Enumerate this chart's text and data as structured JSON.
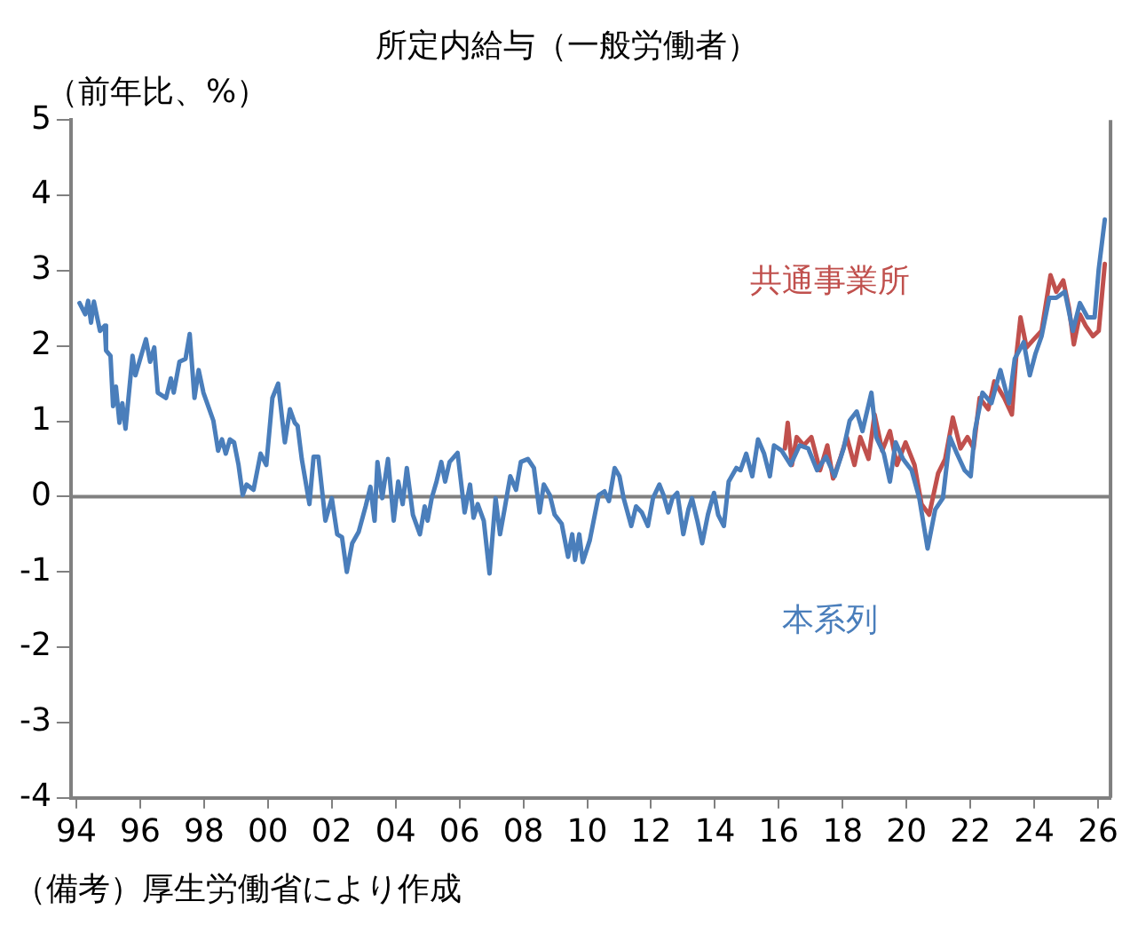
{
  "chart_data": {
    "type": "line",
    "title": "所定内給与（一般労働者）",
    "ylabel": "（前年比、%）",
    "annotations": [
      "（備考）厚生労働省により作成"
    ],
    "xlim": [
      1993.83,
      2026.39
    ],
    "ylim": [
      -4,
      5
    ],
    "yticks": [
      -4,
      -3,
      -2,
      -1,
      0,
      1,
      2,
      3,
      4,
      5
    ],
    "xticks": [
      {
        "value": 1994,
        "label": "94"
      },
      {
        "value": 1996,
        "label": "96"
      },
      {
        "value": 1998,
        "label": "98"
      },
      {
        "value": 2000,
        "label": "00"
      },
      {
        "value": 2002,
        "label": "02"
      },
      {
        "value": 2004,
        "label": "04"
      },
      {
        "value": 2006,
        "label": "06"
      },
      {
        "value": 2008,
        "label": "08"
      },
      {
        "value": 2010,
        "label": "10"
      },
      {
        "value": 2012,
        "label": "12"
      },
      {
        "value": 2014,
        "label": "14"
      },
      {
        "value": 2016,
        "label": "16"
      },
      {
        "value": 2018,
        "label": "18"
      },
      {
        "value": 2020,
        "label": "20"
      },
      {
        "value": 2022,
        "label": "22"
      },
      {
        "value": 2024,
        "label": "24"
      },
      {
        "value": 2026,
        "label": "26"
      }
    ],
    "grid": false,
    "legend": false,
    "marker": "none",
    "line_style": "solid",
    "ref_lines": [
      {
        "axis": "y",
        "value": 0,
        "color": "#808080"
      }
    ],
    "series": [
      {
        "name": "本系列",
        "color": "#4a7ebb",
        "x": [
          1994.1,
          1994.28,
          1994.37,
          1994.46,
          1994.55,
          1994.74,
          1994.89,
          1994.93,
          1995.07,
          1995.15,
          1995.24,
          1995.35,
          1995.44,
          1995.54,
          1995.76,
          1995.85,
          1996.18,
          1996.31,
          1996.44,
          1996.55,
          1996.81,
          1996.96,
          1997.05,
          1997.23,
          1997.42,
          1997.55,
          1997.7,
          1997.83,
          1997.98,
          1998.29,
          1998.44,
          1998.56,
          1998.68,
          1998.81,
          1998.94,
          1999.08,
          1999.21,
          1999.33,
          1999.55,
          1999.77,
          1999.95,
          2000.14,
          2000.32,
          2000.53,
          2000.69,
          2000.84,
          2000.93,
          2001.06,
          2001.3,
          2001.43,
          2001.58,
          2001.8,
          2002.0,
          2002.17,
          2002.32,
          2002.47,
          2002.64,
          2002.84,
          2003.06,
          2003.21,
          2003.34,
          2003.43,
          2003.58,
          2003.76,
          2003.94,
          2004.08,
          2004.22,
          2004.35,
          2004.54,
          2004.76,
          2004.91,
          2005.0,
          2005.13,
          2005.28,
          2005.43,
          2005.55,
          2005.69,
          2005.94,
          2006.16,
          2006.33,
          2006.44,
          2006.57,
          2006.76,
          2006.94,
          2007.13,
          2007.27,
          2007.41,
          2007.59,
          2007.77,
          2007.92,
          2008.14,
          2008.33,
          2008.51,
          2008.64,
          2008.83,
          2008.98,
          2009.2,
          2009.4,
          2009.53,
          2009.62,
          2009.75,
          2009.86,
          2010.08,
          2010.36,
          2010.54,
          2010.68,
          2010.86,
          2011.01,
          2011.14,
          2011.38,
          2011.53,
          2011.71,
          2011.9,
          2012.06,
          2012.26,
          2012.39,
          2012.54,
          2012.67,
          2012.82,
          2013.01,
          2013.17,
          2013.28,
          2013.45,
          2013.6,
          2013.78,
          2013.97,
          2014.1,
          2014.28,
          2014.43,
          2014.67,
          2014.8,
          2014.98,
          2015.17,
          2015.35,
          2015.54,
          2015.72,
          2015.85,
          2016.09,
          2016.37,
          2016.65,
          2016.92,
          2017.2,
          2017.48,
          2017.75,
          2018.03,
          2018.22,
          2018.44,
          2018.62,
          2018.9,
          2019.05,
          2019.29,
          2019.48,
          2019.66,
          2019.89,
          2020.16,
          2020.4,
          2020.66,
          2020.9,
          2021.14,
          2021.36,
          2021.58,
          2021.82,
          2022.01,
          2022.14,
          2022.38,
          2022.66,
          2022.94,
          2023.21,
          2023.39,
          2023.67,
          2023.86,
          2024.04,
          2024.23,
          2024.47,
          2024.69,
          2024.96,
          2025.21,
          2025.43,
          2025.67,
          2025.89,
          2026.02,
          2026.21
        ],
        "values": [
          2.57,
          2.42,
          2.6,
          2.31,
          2.59,
          2.2,
          2.27,
          1.94,
          1.87,
          1.2,
          1.46,
          0.98,
          1.24,
          0.9,
          1.87,
          1.61,
          2.09,
          1.79,
          1.98,
          1.38,
          1.31,
          1.57,
          1.38,
          1.79,
          1.83,
          2.16,
          1.31,
          1.68,
          1.38,
          1.01,
          0.61,
          0.76,
          0.57,
          0.76,
          0.72,
          0.42,
          0.02,
          0.16,
          0.09,
          0.57,
          0.42,
          1.31,
          1.5,
          0.72,
          1.16,
          0.98,
          0.94,
          0.5,
          -0.1,
          0.53,
          0.53,
          -0.32,
          -0.02,
          -0.5,
          -0.54,
          -1.0,
          -0.62,
          -0.47,
          -0.13,
          0.13,
          -0.32,
          0.46,
          -0.02,
          0.5,
          -0.32,
          0.2,
          -0.1,
          0.38,
          -0.24,
          -0.5,
          -0.13,
          -0.32,
          -0.02,
          0.2,
          0.46,
          0.2,
          0.46,
          0.58,
          -0.21,
          0.16,
          -0.28,
          -0.1,
          -0.32,
          -1.02,
          -0.02,
          -0.5,
          -0.17,
          0.27,
          0.09,
          0.46,
          0.5,
          0.38,
          -0.21,
          0.16,
          0.02,
          -0.24,
          -0.36,
          -0.8,
          -0.5,
          -0.84,
          -0.5,
          -0.87,
          -0.58,
          0.02,
          0.07,
          -0.06,
          0.38,
          0.27,
          -0.02,
          -0.39,
          -0.13,
          -0.21,
          -0.39,
          -0.02,
          0.16,
          0.02,
          -0.21,
          -0.02,
          0.05,
          -0.5,
          -0.17,
          -0.02,
          -0.32,
          -0.62,
          -0.24,
          0.05,
          -0.24,
          -0.39,
          0.2,
          0.38,
          0.35,
          0.57,
          0.27,
          0.76,
          0.57,
          0.27,
          0.68,
          0.61,
          0.42,
          0.68,
          0.64,
          0.35,
          0.53,
          0.27,
          0.64,
          1.01,
          1.13,
          0.87,
          1.38,
          0.79,
          0.57,
          0.2,
          0.72,
          0.5,
          0.35,
          -0.02,
          -0.69,
          -0.17,
          -0.02,
          0.79,
          0.57,
          0.35,
          0.27,
          0.87,
          1.38,
          1.24,
          1.68,
          1.24,
          1.83,
          2.05,
          1.61,
          1.9,
          2.13,
          2.64,
          2.64,
          2.72,
          2.2,
          2.57,
          2.38,
          2.38,
          3.02,
          3.68
        ]
      },
      {
        "name": "共通事業所",
        "color": "#c0504d",
        "x": [
          2016.19,
          2016.28,
          2016.41,
          2016.56,
          2016.78,
          2017.02,
          2017.29,
          2017.52,
          2017.7,
          2017.94,
          2018.13,
          2018.37,
          2018.55,
          2018.81,
          2019.0,
          2019.24,
          2019.48,
          2019.7,
          2019.97,
          2020.25,
          2020.47,
          2020.71,
          2020.99,
          2021.21,
          2021.45,
          2021.69,
          2021.91,
          2022.1,
          2022.29,
          2022.56,
          2022.75,
          2023.06,
          2023.3,
          2023.43,
          2023.57,
          2023.76,
          2023.99,
          2024.23,
          2024.51,
          2024.69,
          2024.91,
          2025.09,
          2025.24,
          2025.43,
          2025.61,
          2025.84,
          2026.02,
          2026.21
        ],
        "values": [
          0.64,
          0.98,
          0.42,
          0.79,
          0.68,
          0.79,
          0.35,
          0.68,
          0.24,
          0.53,
          0.79,
          0.42,
          0.79,
          0.5,
          1.09,
          0.61,
          0.87,
          0.42,
          0.72,
          0.42,
          -0.1,
          -0.24,
          0.31,
          0.5,
          1.05,
          0.64,
          0.79,
          0.64,
          1.31,
          1.16,
          1.53,
          1.31,
          1.09,
          1.83,
          2.38,
          1.98,
          2.09,
          2.2,
          2.94,
          2.72,
          2.87,
          2.5,
          2.02,
          2.42,
          2.27,
          2.13,
          2.2,
          3.09
        ]
      }
    ]
  }
}
